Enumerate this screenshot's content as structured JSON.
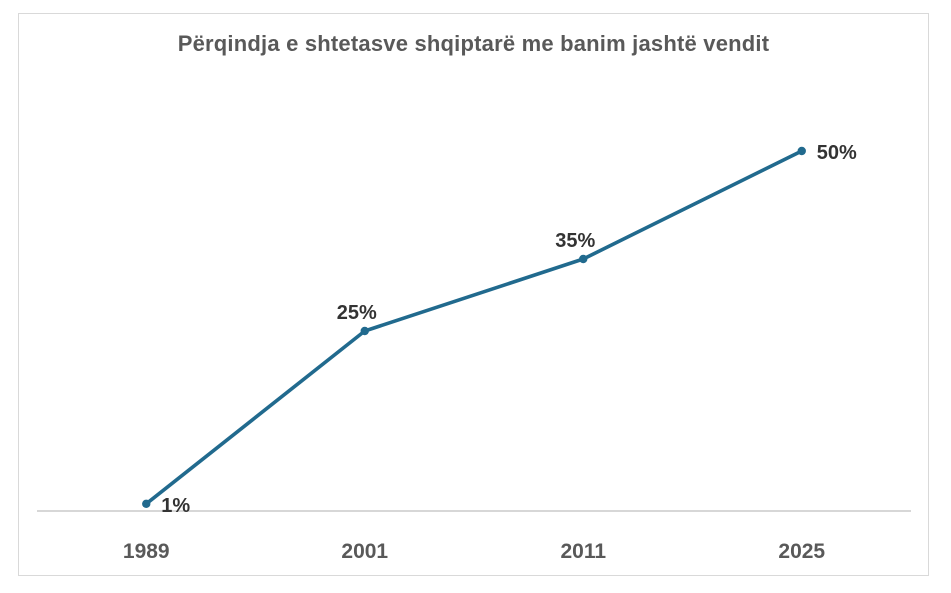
{
  "chart_data": {
    "type": "line",
    "title": "Përqindja e shtetasve shqiptarë me banim jashtë vendit",
    "categories": [
      "1989",
      "2001",
      "2011",
      "2025"
    ],
    "values": [
      1,
      25,
      35,
      50
    ],
    "data_labels": [
      "1%",
      "25%",
      "35%",
      "50%"
    ],
    "data_label_positions": [
      "right",
      "above",
      "above",
      "right"
    ],
    "xlabel": "",
    "ylabel": "",
    "ylim": [
      0,
      60
    ],
    "grid": false,
    "legend": false,
    "y_axis_visible": false,
    "x_axis_visible": true,
    "colors": {
      "line": "#216A8E",
      "marker": "#216A8E",
      "title": "#595959",
      "tick_label": "#595959",
      "data_label": "#333333",
      "axis_line": "#BFBFBF",
      "frame_border": "#D9D9D9",
      "background": "#FFFFFF"
    }
  }
}
